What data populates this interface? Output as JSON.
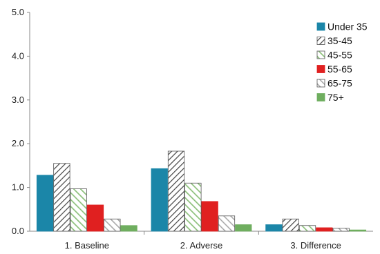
{
  "chart_data": {
    "type": "bar",
    "title": "",
    "xlabel": "",
    "ylabel": "",
    "ylim": [
      0,
      5
    ],
    "yticks": [
      "0.0",
      "1.0",
      "2.0",
      "3.0",
      "4.0",
      "5.0"
    ],
    "categories": [
      "1. Baseline",
      "2. Adverse",
      "3. Difference"
    ],
    "series": [
      {
        "name": "Under 35",
        "values": [
          1.28,
          1.43,
          0.15
        ],
        "color": "#1b86a8",
        "pattern": "solid"
      },
      {
        "name": "35-45",
        "values": [
          1.55,
          1.83,
          0.28
        ],
        "color": "#444444",
        "pattern": "hatch-dark"
      },
      {
        "name": "45-55",
        "values": [
          0.97,
          1.1,
          0.13
        ],
        "color": "#8cc07a",
        "pattern": "hatch-green"
      },
      {
        "name": "55-65",
        "values": [
          0.6,
          0.68,
          0.08
        ],
        "color": "#e02020",
        "pattern": "solid"
      },
      {
        "name": "65-75",
        "values": [
          0.28,
          0.35,
          0.07
        ],
        "color": "#aaaaaa",
        "pattern": "hatch-light"
      },
      {
        "name": "75+",
        "values": [
          0.13,
          0.15,
          0.03
        ],
        "color": "#6fae5f",
        "pattern": "solid"
      }
    ],
    "legend_position": "top-right",
    "grid": false
  }
}
